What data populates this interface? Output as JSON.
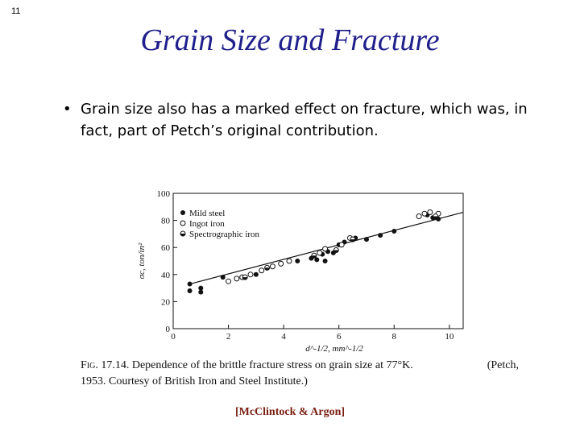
{
  "slide_number": "11",
  "title": "Grain Size and Fracture",
  "bullet": "Grain size also has a marked effect on fracture, which was, in fact, part of Petch’s original contribution.",
  "caption": {
    "label": "Fig. 17.14.",
    "line1": "Dependence of the brittle fracture stress on grain size at 77°K.",
    "credit": "(Petch,",
    "line2": "1953. Courtesy of British Iron and Steel Institute.)"
  },
  "citation": "[McClintock & Argon]",
  "chart_data": {
    "type": "scatter",
    "xlabel": "d^-1/2, mm^-1/2",
    "ylabel": "σc, ton/in²",
    "xlim": [
      0,
      10.5
    ],
    "ylim": [
      0,
      100
    ],
    "x_ticks": [
      0,
      2,
      4,
      6,
      8,
      10
    ],
    "y_ticks": [
      0,
      20,
      40,
      60,
      80,
      100
    ],
    "grid": false,
    "legend_position": "top-left",
    "colors": {
      "ink": "#111111"
    },
    "series": [
      {
        "name": "Mild steel",
        "marker": "filled-circle",
        "points": [
          [
            0.6,
            33
          ],
          [
            0.6,
            28
          ],
          [
            1.0,
            30
          ],
          [
            1.0,
            27
          ],
          [
            1.8,
            38
          ],
          [
            3.0,
            40
          ],
          [
            4.5,
            50
          ],
          [
            5.0,
            52
          ],
          [
            5.2,
            51
          ],
          [
            5.4,
            55
          ],
          [
            5.5,
            50
          ],
          [
            5.6,
            57
          ],
          [
            5.8,
            56
          ],
          [
            6.0,
            62
          ],
          [
            6.2,
            64
          ],
          [
            6.6,
            67
          ],
          [
            7.0,
            66
          ],
          [
            7.5,
            69
          ],
          [
            8.0,
            72
          ],
          [
            9.2,
            84
          ],
          [
            9.4,
            82
          ],
          [
            9.6,
            81
          ]
        ]
      },
      {
        "name": "Ingot iron",
        "marker": "open-circle",
        "points": [
          [
            2.0,
            35
          ],
          [
            2.3,
            37
          ],
          [
            2.5,
            38
          ],
          [
            2.8,
            40
          ],
          [
            3.2,
            43
          ],
          [
            3.6,
            46
          ],
          [
            3.9,
            48
          ],
          [
            4.2,
            50
          ],
          [
            5.3,
            56
          ],
          [
            5.5,
            59
          ],
          [
            6.1,
            62
          ],
          [
            6.4,
            67
          ],
          [
            8.9,
            83
          ],
          [
            9.1,
            85
          ],
          [
            9.3,
            86
          ],
          [
            9.6,
            85
          ]
        ]
      },
      {
        "name": "Spectrographic iron",
        "marker": "half-filled-circle",
        "points": [
          [
            2.6,
            38
          ],
          [
            3.4,
            45
          ],
          [
            5.1,
            54
          ],
          [
            5.9,
            58
          ],
          [
            6.5,
            66
          ],
          [
            9.5,
            83
          ]
        ]
      }
    ],
    "fit_line": {
      "x": [
        0.6,
        10.5
      ],
      "y": [
        33,
        86
      ]
    }
  }
}
